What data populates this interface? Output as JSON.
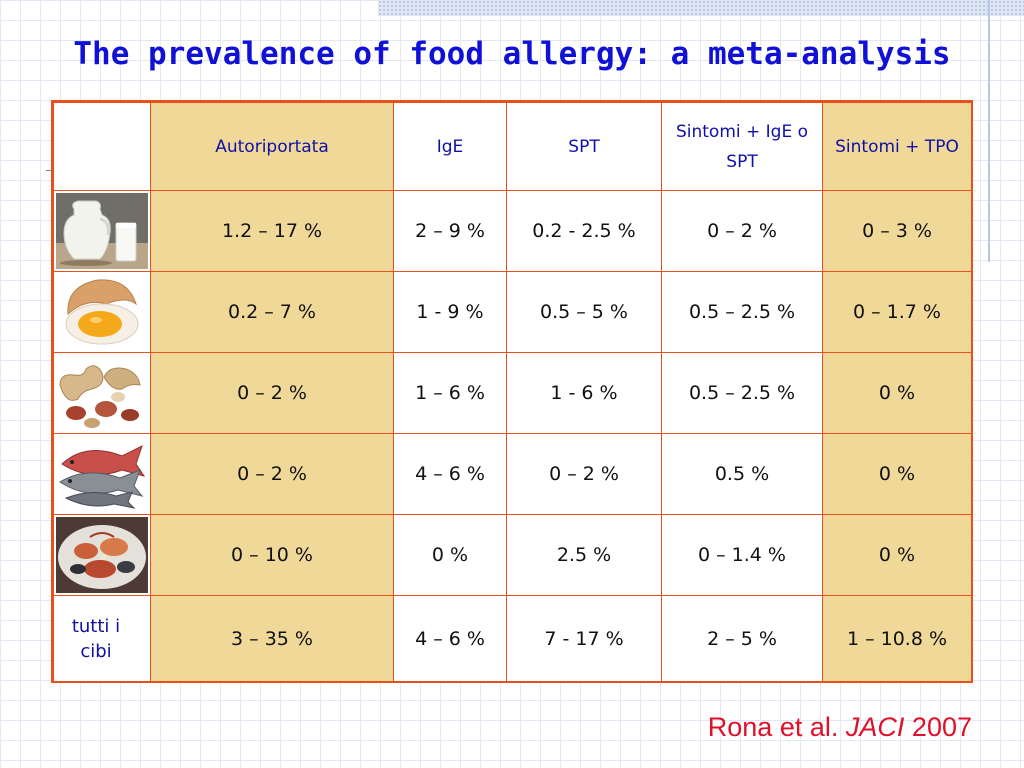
{
  "title": "The prevalence of food allergy: a meta-analysis",
  "table": {
    "headers": [
      "",
      "Autoriportata",
      "IgE",
      "SPT",
      "Sintomi + IgE o SPT",
      "Sintomi + TPO"
    ],
    "rows": [
      {
        "food_icon": "milk-icon",
        "cells": [
          "1.2 – 17 %",
          "2 – 9 %",
          "0.2 - 2.5 %",
          "0 – 2 %",
          "0 – 3 %"
        ]
      },
      {
        "food_icon": "egg-icon",
        "cells": [
          "0.2 – 7 %",
          "1 - 9 %",
          "0.5 – 5 %",
          "0.5 – 2.5 %",
          "0 – 1.7 %"
        ]
      },
      {
        "food_icon": "peanut-icon",
        "cells": [
          "0 – 2 %",
          "1 – 6 %",
          "1 - 6 %",
          "0.5 – 2.5 %",
          "0 %"
        ]
      },
      {
        "food_icon": "fish-icon",
        "cells": [
          "0 – 2 %",
          "4 – 6 %",
          "0 – 2 %",
          "0.5 %",
          "0 %"
        ]
      },
      {
        "food_icon": "seafood-icon",
        "cells": [
          "0 – 10 %",
          "0 %",
          "2.5 %",
          "0 – 1.4 %",
          "0 %"
        ]
      },
      {
        "label": "tutti i cibi",
        "cells": [
          "3 – 35 %",
          "4 – 6 %",
          "7 - 17 %",
          "2 – 5 %",
          "1 – 10.8 %"
        ]
      }
    ]
  },
  "citation": {
    "authors": "Rona et al.",
    "journal": "JACI",
    "year": "2007"
  },
  "colors": {
    "title": "#1010d6",
    "border": "#e8501e",
    "header_fill": "#f0d998",
    "citation": "#e0102a"
  }
}
